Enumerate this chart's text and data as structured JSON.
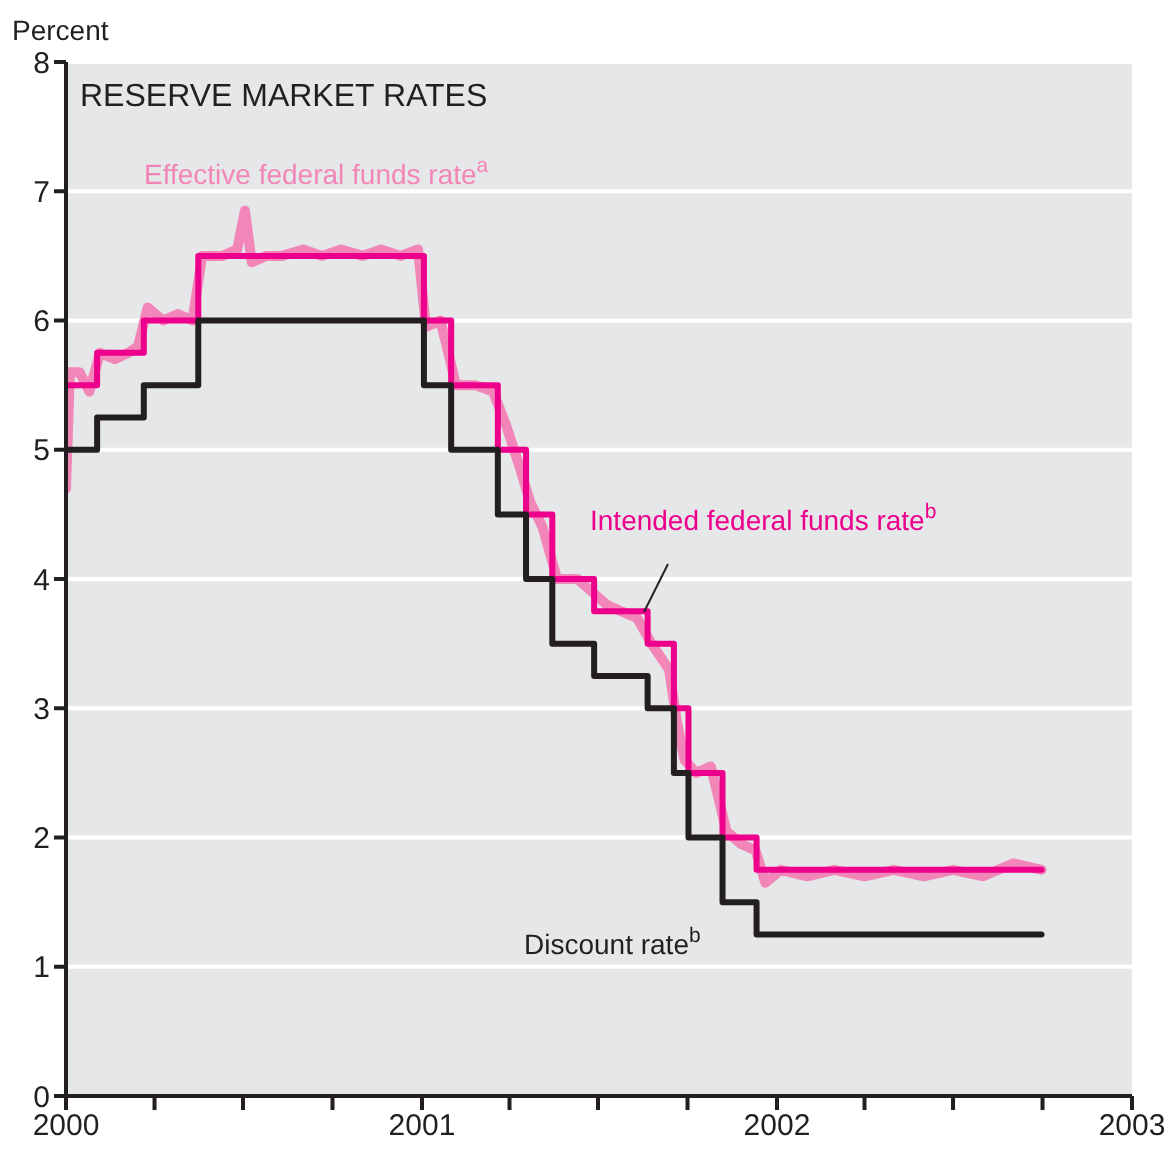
{
  "chart_data": {
    "type": "step",
    "title": "RESERVE MARKET RATES",
    "ylabel": "Percent",
    "xlim": [
      "2000",
      "2003"
    ],
    "xticks": [
      "2000",
      {
        "value": "2000-04",
        "label": null
      },
      {
        "value": "2000-07",
        "label": null
      },
      {
        "value": "2000-10",
        "label": null
      },
      "2001",
      {
        "value": "2001-04",
        "label": null
      },
      {
        "value": "2001-07",
        "label": null
      },
      {
        "value": "2001-10",
        "label": null
      },
      "2002",
      {
        "value": "2002-04",
        "label": null
      },
      {
        "value": "2002-07",
        "label": null
      },
      {
        "value": "2002-10",
        "label": null
      },
      "2003"
    ],
    "ylim": [
      0,
      8
    ],
    "yticks": [
      0,
      1,
      2,
      3,
      4,
      5,
      6,
      7,
      8
    ],
    "grid": "y",
    "legend": false,
    "series": [
      {
        "name": "Effective federal funds rate$^{a}$",
        "type": "line",
        "color": "#f386b8",
        "x": [
          "2000-01-01",
          "2000-01-05",
          "2000-01-15",
          "2000-01-25",
          "2000-02-05",
          "2000-02-20",
          "2000-03-05",
          "2000-03-15",
          "2000-03-25",
          "2000-04-10",
          "2000-04-25",
          "2000-05-10",
          "2000-05-20",
          "2000-06-10",
          "2000-06-25",
          "2000-07-03",
          "2000-07-10",
          "2000-07-25",
          "2000-08-10",
          "2000-09-01",
          "2000-09-20",
          "2000-10-10",
          "2000-11-01",
          "2000-11-20",
          "2000-12-10",
          "2000-12-28",
          "2001-01-05",
          "2001-01-20",
          "2001-02-05",
          "2001-02-25",
          "2001-03-15",
          "2001-03-28",
          "2001-04-10",
          "2001-04-22",
          "2001-05-05",
          "2001-05-20",
          "2001-06-10",
          "2001-06-25",
          "2001-07-10",
          "2001-07-25",
          "2001-08-10",
          "2001-08-25",
          "2001-09-12",
          "2001-09-20",
          "2001-09-28",
          "2001-10-10",
          "2001-10-25",
          "2001-11-10",
          "2001-11-25",
          "2001-12-10",
          "2001-12-20",
          "2002-01-05",
          "2002-02-01",
          "2002-03-01",
          "2002-04-01",
          "2002-05-01",
          "2002-06-01",
          "2002-07-01",
          "2002-08-01",
          "2002-09-01",
          "2002-09-30"
        ],
        "values": [
          4.7,
          5.6,
          5.6,
          5.45,
          5.75,
          5.7,
          5.75,
          5.8,
          6.1,
          6.0,
          6.05,
          6.0,
          6.5,
          6.5,
          6.55,
          6.85,
          6.45,
          6.5,
          6.5,
          6.55,
          6.5,
          6.55,
          6.5,
          6.55,
          6.5,
          6.55,
          5.95,
          6.0,
          5.5,
          5.5,
          5.45,
          5.2,
          4.9,
          4.6,
          4.4,
          4.0,
          4.0,
          3.9,
          3.8,
          3.75,
          3.7,
          3.5,
          3.3,
          2.9,
          2.6,
          2.5,
          2.55,
          2.05,
          1.95,
          1.9,
          1.65,
          1.75,
          1.7,
          1.75,
          1.7,
          1.75,
          1.7,
          1.75,
          1.7,
          1.8,
          1.75
        ]
      },
      {
        "name": "Intended federal funds rate$^{b}$",
        "color": "#ec008c",
        "x": [
          "2000-01-01",
          "2000-02-02",
          "2000-03-21",
          "2000-05-16",
          "2001-01-03",
          "2001-01-31",
          "2001-03-20",
          "2001-04-18",
          "2001-05-15",
          "2001-06-27",
          "2001-08-21",
          "2001-09-17",
          "2001-10-02",
          "2001-11-06",
          "2001-12-11",
          "2002-09-30"
        ],
        "values": [
          5.5,
          5.75,
          6.0,
          6.5,
          6.0,
          5.5,
          5.0,
          4.5,
          4.0,
          3.75,
          3.5,
          3.0,
          2.5,
          2.0,
          1.75,
          1.75
        ]
      },
      {
        "name": "Discount rate$^{b}$",
        "color": "#231f20",
        "x": [
          "2000-01-01",
          "2000-02-02",
          "2000-03-21",
          "2000-05-16",
          "2001-01-03",
          "2001-01-31",
          "2001-03-20",
          "2001-04-18",
          "2001-05-15",
          "2001-06-27",
          "2001-08-21",
          "2001-09-17",
          "2001-10-02",
          "2001-11-06",
          "2001-12-11",
          "2002-09-30"
        ],
        "values": [
          5.0,
          5.25,
          5.5,
          6.0,
          5.5,
          5.0,
          4.5,
          4.0,
          3.5,
          3.25,
          3.0,
          2.5,
          2.0,
          1.5,
          1.25,
          1.25
        ]
      }
    ]
  }
}
